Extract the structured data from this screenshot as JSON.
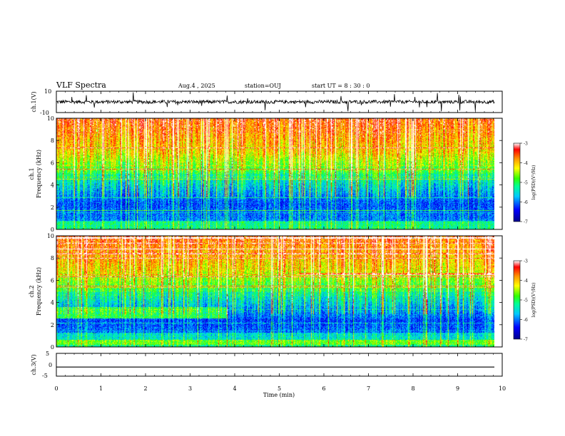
{
  "header": {
    "title": "VLF Spectra",
    "date": "Aug.4 , 2025",
    "station": "station=OUJ",
    "start_ut": "start UT = 8 : 30 : 0"
  },
  "chart_data": [
    {
      "type": "line",
      "name": "ch1-waveform",
      "ylabel": "ch.1(V)",
      "ylim": [
        -10,
        10
      ],
      "yticks": [
        "10",
        "-10"
      ],
      "baseline": 0,
      "description_values": {
        "typical_amplitude": 2
      }
    },
    {
      "type": "heatmap",
      "name": "ch1-spectrogram",
      "ylabel_line1": "ch.1",
      "ylabel_line2": "Frequency (kHz)",
      "ylim": [
        0,
        10
      ],
      "yticks": [
        "0",
        "2",
        "4",
        "6",
        "8",
        "10"
      ],
      "colorbar": {
        "label": "log(PSD)(V²/Hz)",
        "ticks": [
          "-3",
          "-4",
          "-5",
          "-6",
          "-7"
        ],
        "range": [
          -7,
          -3
        ]
      }
    },
    {
      "type": "heatmap",
      "name": "ch2-spectrogram",
      "ylabel_line1": "ch.2",
      "ylabel_line2": "Frequency (kHz)",
      "ylim": [
        0,
        10
      ],
      "yticks": [
        "0",
        "2",
        "4",
        "6",
        "8",
        "10"
      ],
      "colorbar": {
        "label": "log(PSD)(V²/Hz)",
        "ticks": [
          "-3",
          "-4",
          "-5",
          "-6",
          "-7"
        ],
        "range": [
          -7,
          -3
        ]
      }
    },
    {
      "type": "line",
      "name": "ch3-waveform",
      "ylabel": "ch.3(V)",
      "ylim": [
        -5,
        5
      ],
      "yticks": [
        "5",
        "0",
        "-5"
      ],
      "constant_value": -1
    }
  ],
  "xaxis": {
    "label": "Time (min)",
    "range": [
      0,
      10
    ],
    "ticks": [
      "0",
      "1",
      "2",
      "3",
      "4",
      "5",
      "6",
      "7",
      "8",
      "9",
      "10"
    ]
  }
}
